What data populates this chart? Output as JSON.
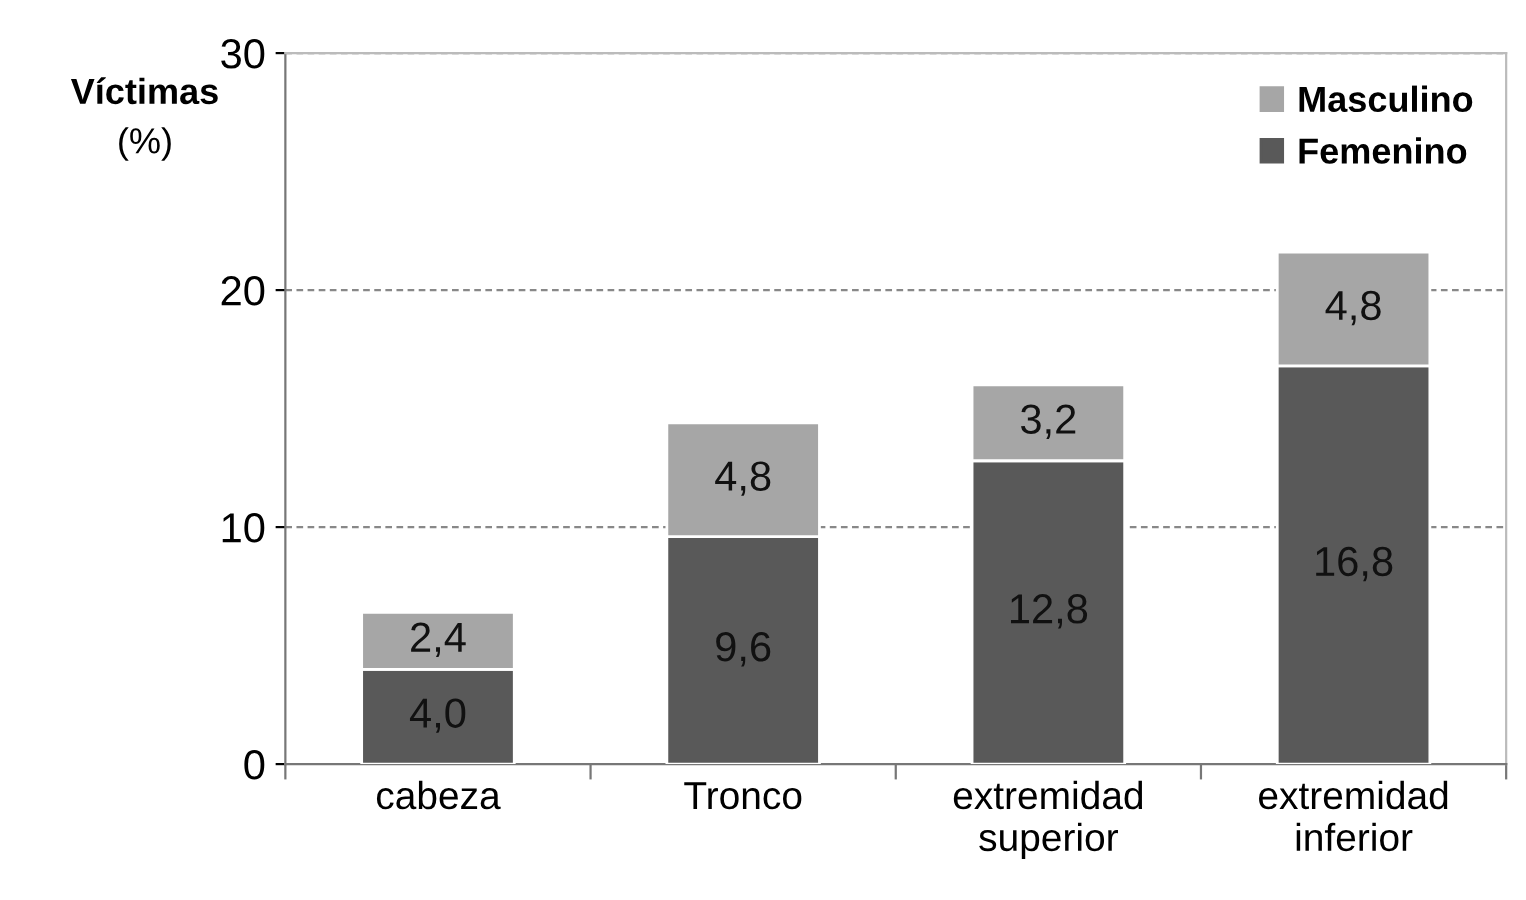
{
  "chart_data": {
    "type": "bar",
    "stacked": true,
    "ylabel": "Víctimas\n(%)",
    "categories": [
      "cabeza",
      "Tronco",
      "extremidad\nsuperior",
      "extremidad\ninferior"
    ],
    "series": [
      {
        "name": "Femenino",
        "color": "#595959",
        "values": [
          4.0,
          9.6,
          12.8,
          16.8
        ],
        "value_labels": [
          "4,0",
          "9,6",
          "12,8",
          "16,8"
        ]
      },
      {
        "name": "Masculino",
        "color": "#a6a6a6",
        "values": [
          2.4,
          4.8,
          3.2,
          4.8
        ],
        "value_labels": [
          "2,4",
          "4,8",
          "3,2",
          "4,8"
        ]
      }
    ],
    "ylim": [
      0,
      30
    ],
    "yticks": [
      0,
      10,
      20,
      30
    ],
    "grid": "y",
    "legend": "top right"
  }
}
